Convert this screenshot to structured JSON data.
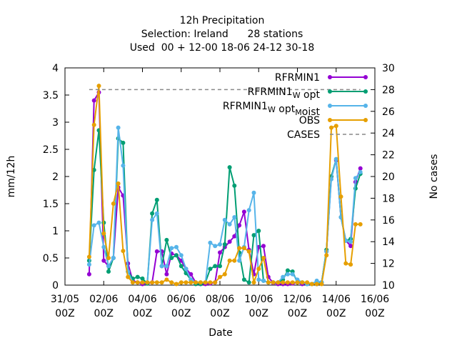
{
  "chart_data": {
    "type": "line",
    "title_lines": [
      "12h Precipitation",
      "Selection: Ireland      28 stations",
      "Used  00 + 12-00 18-06 24-12 30-18"
    ],
    "xlabel": "Date",
    "ylabel": "mm/12h",
    "y2label": "No cases",
    "xlim": [
      0,
      16
    ],
    "ylim": [
      0,
      4
    ],
    "y2lim": [
      10,
      30
    ],
    "x_ticks": [
      {
        "v": 0,
        "l1": "31/05",
        "l2": "00Z"
      },
      {
        "v": 2,
        "l1": "02/06",
        "l2": "00Z"
      },
      {
        "v": 4,
        "l1": "04/06",
        "l2": "00Z"
      },
      {
        "v": 6,
        "l1": "06/06",
        "l2": "00Z"
      },
      {
        "v": 8,
        "l1": "08/06",
        "l2": "00Z"
      },
      {
        "v": 10,
        "l1": "10/06",
        "l2": "00Z"
      },
      {
        "v": 12,
        "l1": "12/06",
        "l2": "00Z"
      },
      {
        "v": 14,
        "l1": "14/06",
        "l2": "00Z"
      },
      {
        "v": 16,
        "l1": "16/06",
        "l2": "00Z"
      }
    ],
    "y_ticks": [
      "0",
      "0.5",
      "1",
      "1.5",
      "2",
      "2.5",
      "3",
      "3.5",
      "4"
    ],
    "y2_ticks": [
      "10",
      "12",
      "14",
      "16",
      "18",
      "20",
      "22",
      "24",
      "26",
      "28",
      "30"
    ],
    "grid": false,
    "legend_position": "top-right",
    "x": [
      1.25,
      1.5,
      1.75,
      2.0,
      2.25,
      2.5,
      2.75,
      3.0,
      3.25,
      3.5,
      3.75,
      4.0,
      4.25,
      4.5,
      4.75,
      5.0,
      5.25,
      5.5,
      5.75,
      6.0,
      6.25,
      6.5,
      6.75,
      7.0,
      7.25,
      7.5,
      7.75,
      8.0,
      8.25,
      8.5,
      8.75,
      9.0,
      9.25,
      9.5,
      9.75,
      10.0,
      10.25,
      10.5,
      10.75,
      11.0,
      11.25,
      11.5,
      11.75,
      12.0,
      12.25,
      12.5,
      12.75,
      13.0,
      13.25,
      13.5,
      13.75,
      14.0,
      14.25,
      14.5,
      14.75,
      15.0,
      15.25
    ],
    "series": [
      {
        "name": "RFRMIN1",
        "color": "#9400d3",
        "marker": "circle",
        "values": [
          0.2,
          3.4,
          3.55,
          0.45,
          0.35,
          0.5,
          1.8,
          1.65,
          0.4,
          0.08,
          0.05,
          0.02,
          0.03,
          0.05,
          0.62,
          0.62,
          0.2,
          0.58,
          0.55,
          0.45,
          0.3,
          0.2,
          0.05,
          0.02,
          0.02,
          0.03,
          0.05,
          0.6,
          0.7,
          0.8,
          0.9,
          1.1,
          1.35,
          0.65,
          0.2,
          0.7,
          0.72,
          0.15,
          0.04,
          0.02,
          0.02,
          0.02,
          0.03,
          0.05,
          0.02,
          0.02,
          0.02,
          0.02,
          0.05,
          0.62,
          2.0,
          2.3,
          1.25,
          0.82,
          0.72,
          1.9,
          2.15
        ]
      },
      {
        "name": "RFRMIN1_W opt",
        "color": "#009e73",
        "marker": "circle",
        "values": [
          0.45,
          2.12,
          2.85,
          1.15,
          0.25,
          0.5,
          2.7,
          2.62,
          0.25,
          0.12,
          0.15,
          0.12,
          0.03,
          1.32,
          1.57,
          0.35,
          0.83,
          0.5,
          0.55,
          0.35,
          0.22,
          0.1,
          0.02,
          0.02,
          0.05,
          0.3,
          0.35,
          0.35,
          0.75,
          2.17,
          1.83,
          0.6,
          0.1,
          0.05,
          0.92,
          1.0,
          0.08,
          0.05,
          0.05,
          0.05,
          0.1,
          0.27,
          0.25,
          0.05,
          0.05,
          0.02,
          0.02,
          0.02,
          0.05,
          0.65,
          2.0,
          2.32,
          1.25,
          0.82,
          0.85,
          1.78,
          2.05
        ]
      },
      {
        "name": "RFRMIN1_W opt_M oist",
        "color": "#56b4e9",
        "marker": "circle",
        "values": [
          0.38,
          1.1,
          1.15,
          0.7,
          0.35,
          0.5,
          2.9,
          2.2,
          0.25,
          0.05,
          0.05,
          0.05,
          0.05,
          1.2,
          1.32,
          0.35,
          0.35,
          0.68,
          0.7,
          0.55,
          0.3,
          0.1,
          0.05,
          0.05,
          0.05,
          0.78,
          0.72,
          0.75,
          1.2,
          1.12,
          1.25,
          0.45,
          0.7,
          1.38,
          1.7,
          0.1,
          0.08,
          0.05,
          0.05,
          0.05,
          0.15,
          0.2,
          0.2,
          0.1,
          0.05,
          0.02,
          0.02,
          0.08,
          0.05,
          0.62,
          1.95,
          2.32,
          1.25,
          0.82,
          0.8,
          1.97,
          2.08
        ]
      },
      {
        "name": "OBS",
        "color": "#e69f00",
        "marker": "circle",
        "values": [
          0.52,
          2.95,
          3.67,
          0.95,
          0.5,
          1.5,
          1.87,
          0.63,
          0.15,
          0.05,
          0.05,
          0.05,
          0.05,
          0.05,
          0.05,
          0.05,
          0.1,
          0.05,
          0.02,
          0.05,
          0.05,
          0.05,
          0.05,
          0.05,
          0.05,
          0.05,
          0.05,
          0.15,
          0.2,
          0.45,
          0.45,
          0.68,
          0.68,
          0.62,
          0.05,
          0.3,
          0.5,
          0.05,
          0.05,
          0.05,
          0.05,
          0.05,
          0.05,
          0.05,
          0.05,
          0.05,
          0.02,
          0.02,
          0.02,
          0.55,
          2.9,
          2.93,
          1.63,
          0.4,
          0.38,
          1.12,
          1.12
        ]
      },
      {
        "name": "CASES",
        "color": "#888888",
        "marker": "none",
        "dashed": true,
        "axis": "y2",
        "segment": [
          1.25,
          15.25
        ],
        "value": 28
      }
    ],
    "legend": [
      {
        "name": "RFRMIN1",
        "parts": [
          {
            "t": "RFRMIN1"
          }
        ]
      },
      {
        "name": "RFRMIN1_W opt",
        "parts": [
          {
            "t": "RFRMIN1"
          },
          {
            "t": "W",
            "sub": true
          },
          {
            "t": " opt"
          }
        ]
      },
      {
        "name": "RFRMIN1_W opt_M oist",
        "parts": [
          {
            "t": "RFRMIN1"
          },
          {
            "t": "W",
            "sub": true
          },
          {
            "t": " opt"
          },
          {
            "t": "M",
            "sub": true
          },
          {
            "t": "oist"
          }
        ]
      },
      {
        "name": "OBS",
        "parts": [
          {
            "t": "OBS"
          }
        ]
      },
      {
        "name": "CASES",
        "parts": [
          {
            "t": "CASES"
          }
        ]
      }
    ]
  }
}
